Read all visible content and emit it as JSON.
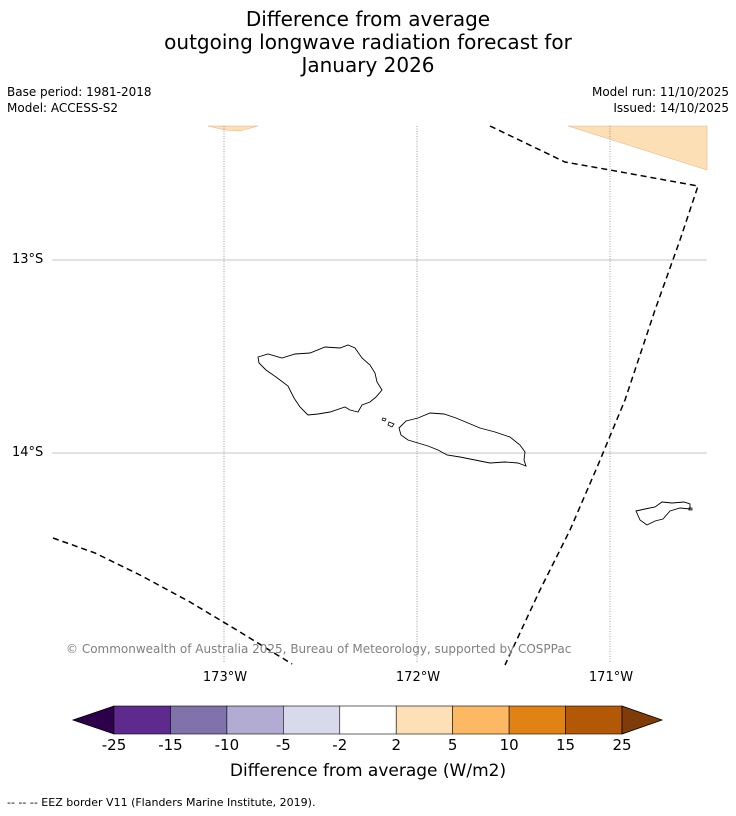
{
  "title": {
    "line1": "Difference from average",
    "line2": "outgoing longwave radiation forecast for",
    "line3": "January 2026"
  },
  "meta": {
    "base_period": "Base period: 1981-2018",
    "model": "Model: ACCESS-S2",
    "model_run": "Model run: 11/10/2025",
    "issued": "Issued: 14/10/2025"
  },
  "map": {
    "lat_labels": [
      "13°S",
      "14°S"
    ],
    "lon_labels": [
      "173°W",
      "172°W",
      "171°W"
    ],
    "copyright": "© Commonwealth of Australia 2025, Bureau of Meteorology, supported by COSPPac",
    "colors": {
      "anomaly_fill": "#fddfb5",
      "coastline": "#000000",
      "gridline": "#b0b0b0"
    },
    "features": [
      "Upolu",
      "Savai'i",
      "Tutuila",
      "eez-border"
    ]
  },
  "colorbar": {
    "ticks": [
      "-25",
      "-15",
      "-10",
      "-5",
      "-2",
      "2",
      "5",
      "10",
      "15",
      "25"
    ],
    "colors": [
      "#2d004b",
      "#5e2a8d",
      "#8073ac",
      "#b2abd2",
      "#d8daeb",
      "#ffffff",
      "#fee0b6",
      "#fdb863",
      "#e08214",
      "#b35806",
      "#7f3b08"
    ],
    "label": "Difference from average (W/m2)"
  },
  "footnote": "--  --  -- EEZ border V11 (Flanders Marine Institute, 2019)."
}
